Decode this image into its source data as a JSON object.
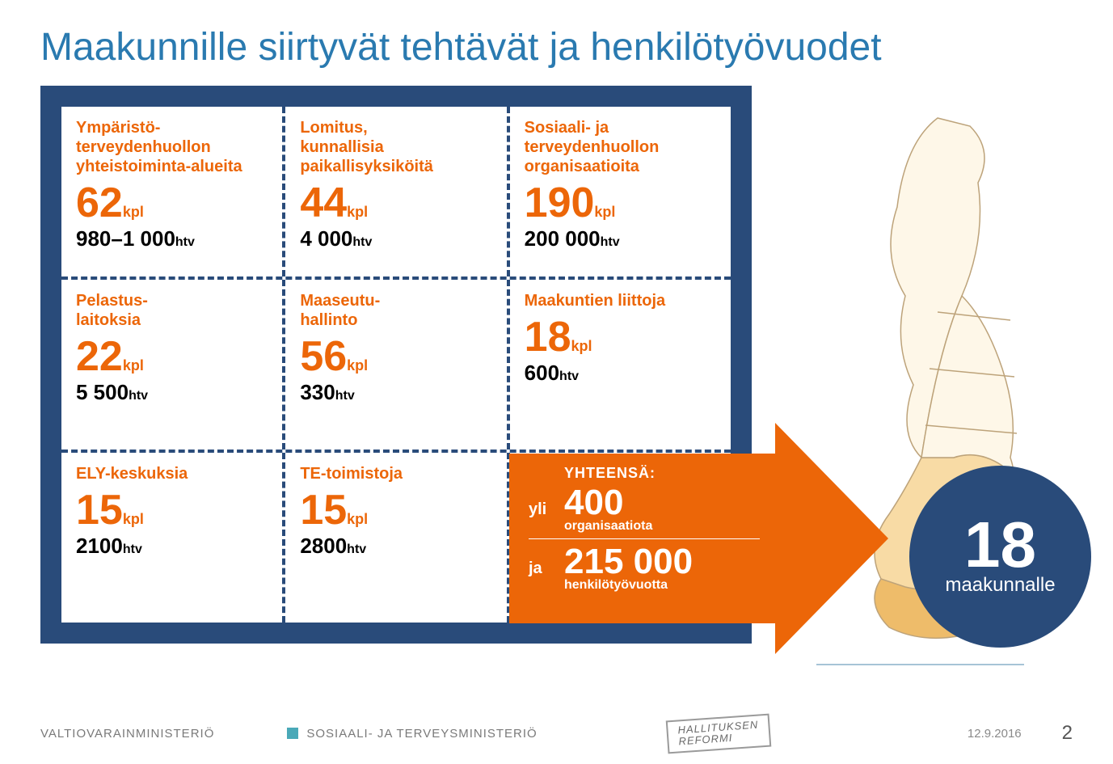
{
  "colors": {
    "accent_blue": "#2a7ab0",
    "frame_navy": "#294b7a",
    "orange": "#ec6608",
    "black": "#000000",
    "white": "#ffffff",
    "map_outline": "#bda37a",
    "map_fill_light": "#fef7e8",
    "map_fill_mid": "#f8dba5",
    "map_fill_dark": "#eebc6a",
    "footer_grey": "#7a7a7a"
  },
  "typography": {
    "title_fontsize": 48,
    "cell_title_fontsize": 20,
    "big_number_fontsize": 52,
    "htv_fontsize": 26,
    "circle_number_fontsize": 80
  },
  "title": "Maakunnille siirtyvät tehtävät ja henkilötyövuodet",
  "cells": [
    {
      "title": "Ympäristö-\nterveydenhuollon yhteistoiminta-alueita",
      "count": "62",
      "unit": "kpl",
      "htv": "980–1 000",
      "htv_unit": "htv"
    },
    {
      "title": "Lomitus,\nkunnallisia paikallisyksiköitä",
      "count": "44",
      "unit": "kpl",
      "htv": "4 000",
      "htv_unit": "htv"
    },
    {
      "title": "Sosiaali- ja terveydenhuollon organisaatioita",
      "count": "190",
      "unit": "kpl",
      "htv": "200 000",
      "htv_unit": "htv"
    },
    {
      "title": "Pelastus-\nlaitoksia",
      "count": "22",
      "unit": "kpl",
      "htv": "5 500",
      "htv_unit": "htv"
    },
    {
      "title": "Maaseutu-\nhallinto",
      "count": "56",
      "unit": "kpl",
      "htv": "330",
      "htv_unit": "htv"
    },
    {
      "title": "Maakuntien liittoja",
      "count": "18",
      "unit": "kpl",
      "htv": "600",
      "htv_unit": "htv"
    },
    {
      "title": "ELY-keskuksia",
      "count": "15",
      "unit": "kpl",
      "htv": "2100",
      "htv_unit": "htv"
    },
    {
      "title": "TE-toimistoja",
      "count": "15",
      "unit": "kpl",
      "htv": "2800",
      "htv_unit": "htv"
    }
  ],
  "summary": {
    "heading": "YHTEENSÄ:",
    "line1_prefix": "yli",
    "line1_big": "400",
    "line1_small": "organisaatiota",
    "line2_prefix": "ja",
    "line2_big": "215 000",
    "line2_small": "henkilötyövuotta"
  },
  "circle": {
    "number": "18",
    "label": "maakunnalle"
  },
  "footer": {
    "ministry1": "VALTIOVARAINMINISTERIÖ",
    "ministry2": "SOSIAALI- JA TERVEYSMINISTERIÖ",
    "stamp_line1": "HALLITUKSEN",
    "stamp_line2": "REFORMI",
    "date": "12.9.2016",
    "page": "2"
  }
}
